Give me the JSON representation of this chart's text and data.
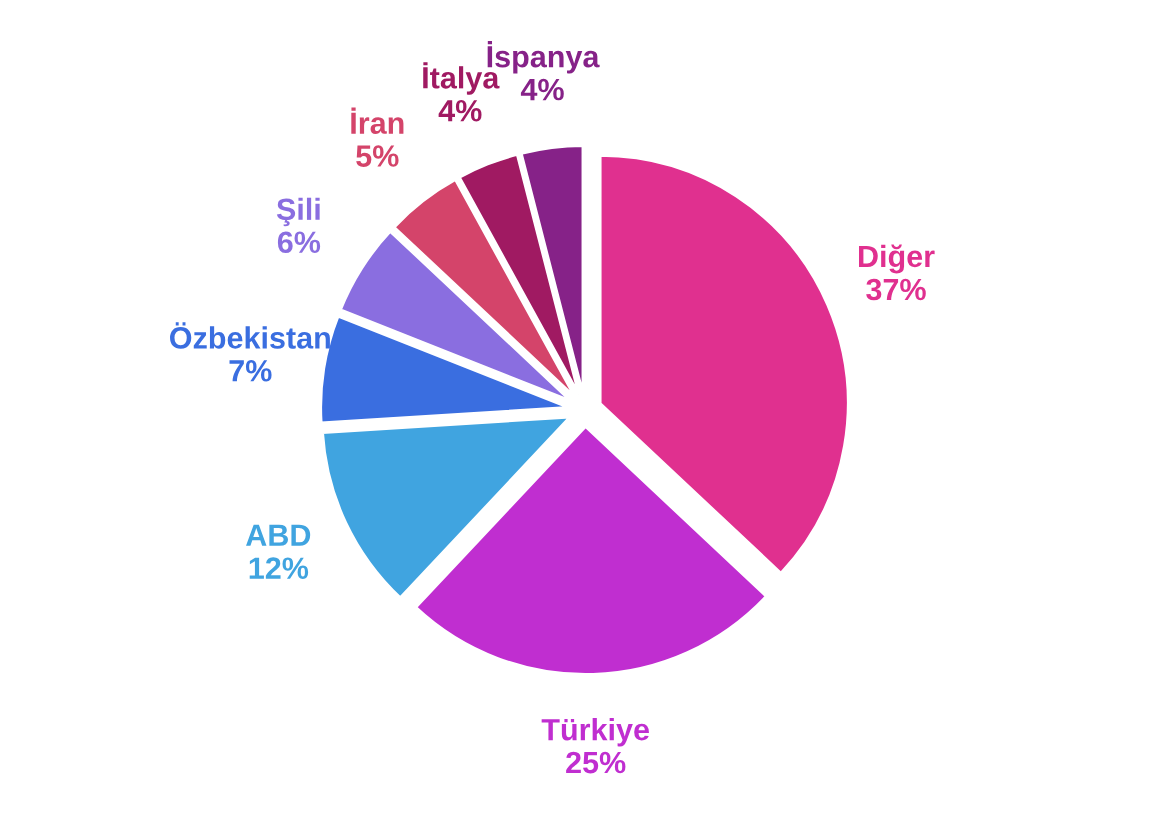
{
  "chart_data": {
    "type": "pie",
    "categories": [
      "Diğer",
      "Türkiye",
      "ABD",
      "Özbekistan",
      "Şili",
      "İran",
      "İtalya",
      "İspanya"
    ],
    "values": [
      37,
      25,
      12,
      7,
      6,
      5,
      4,
      4
    ],
    "value_labels": [
      "37%",
      "25%",
      "12%",
      "7%",
      "6%",
      "5%",
      "4%",
      "4%"
    ],
    "colors": [
      "#e0308f",
      "#c02ed0",
      "#40a4e0",
      "#3a6ee0",
      "#8a6ee0",
      "#d4446a",
      "#a01a62",
      "#862288"
    ]
  }
}
